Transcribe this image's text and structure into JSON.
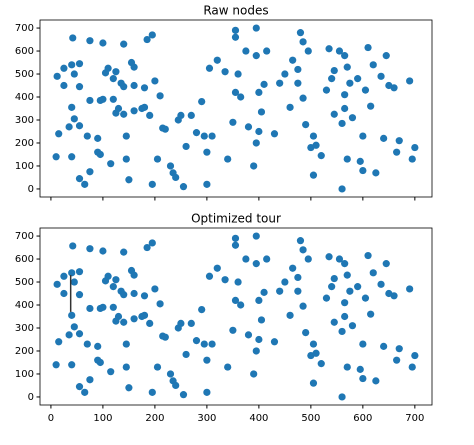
{
  "chart_data": [
    {
      "type": "scatter",
      "title": "Raw nodes",
      "color": "#1f77b4",
      "x": [
        42,
        75,
        100,
        140,
        185,
        195,
        12,
        25,
        40,
        55,
        45,
        25,
        55,
        75,
        95,
        105,
        110,
        120,
        125,
        135,
        140,
        155,
        160,
        180,
        200,
        210,
        15,
        10,
        40,
        45,
        35,
        55,
        40,
        55,
        65,
        75,
        90,
        95,
        115,
        125,
        130,
        120,
        140,
        145,
        145,
        150,
        160,
        180,
        190,
        195,
        205,
        215,
        220,
        230,
        235,
        240,
        245,
        255,
        250,
        260,
        270,
        280,
        290,
        295,
        300,
        300,
        305,
        310,
        320,
        335,
        340,
        350,
        355,
        355,
        355,
        360,
        365,
        375,
        380,
        390,
        395,
        395,
        395,
        400,
        400,
        410,
        405,
        415,
        430,
        440,
        450,
        460,
        465,
        475,
        475,
        480,
        485,
        485,
        490,
        495,
        500,
        505,
        505,
        510,
        520,
        530,
        535,
        540,
        545,
        545,
        555,
        560,
        560,
        565,
        565,
        565,
        570,
        575,
        570,
        580,
        590,
        595,
        600,
        600,
        605,
        610,
        615,
        620,
        625,
        635,
        640,
        645,
        650,
        660,
        665,
        670,
        690,
        700,
        695,
        160,
        175,
        100,
        90,
        70
      ],
      "y": [
        657,
        645,
        635,
        630,
        650,
        670,
        490,
        525,
        540,
        545,
        500,
        450,
        445,
        385,
        385,
        505,
        525,
        480,
        510,
        460,
        445,
        550,
        450,
        440,
        470,
        405,
        240,
        140,
        355,
        305,
        270,
        275,
        140,
        45,
        20,
        75,
        160,
        150,
        110,
        330,
        350,
        390,
        325,
        230,
        130,
        40,
        340,
        355,
        320,
        20,
        130,
        265,
        260,
        100,
        70,
        50,
        300,
        10,
        320,
        185,
        320,
        245,
        380,
        230,
        160,
        20,
        525,
        230,
        560,
        510,
        130,
        290,
        660,
        690,
        420,
        500,
        400,
        600,
        270,
        100,
        200,
        700,
        580,
        250,
        420,
        455,
        335,
        600,
        240,
        460,
        500,
        355,
        560,
        520,
        460,
        680,
        395,
        640,
        280,
        600,
        180,
        230,
        60,
        190,
        145,
        430,
        610,
        480,
        515,
        325,
        600,
        0,
        285,
        350,
        410,
        580,
        530,
        460,
        130,
        310,
        480,
        120,
        230,
        80,
        430,
        615,
        360,
        540,
        70,
        490,
        220,
        580,
        450,
        440,
        160,
        210,
        470,
        180,
        130,
        530,
        350,
        390,
        220,
        230
      ],
      "xlim": [
        -21,
        733
      ],
      "ylim": [
        -35,
        735
      ],
      "xticks": [
        0,
        100,
        200,
        300,
        400,
        500,
        600,
        700
      ],
      "yticks": [
        0,
        100,
        200,
        300,
        400,
        500,
        600,
        700
      ]
    },
    {
      "type": "scatter",
      "title": "Optimized tour",
      "color": "#1f77b4",
      "x": [
        42,
        75,
        100,
        140,
        185,
        195,
        12,
        25,
        40,
        55,
        45,
        25,
        55,
        75,
        95,
        105,
        110,
        120,
        125,
        135,
        140,
        155,
        160,
        180,
        200,
        210,
        15,
        10,
        40,
        45,
        35,
        55,
        40,
        55,
        65,
        75,
        90,
        95,
        115,
        125,
        130,
        120,
        140,
        145,
        145,
        150,
        160,
        180,
        190,
        195,
        205,
        215,
        220,
        230,
        235,
        240,
        245,
        255,
        250,
        260,
        270,
        280,
        290,
        295,
        300,
        300,
        305,
        310,
        320,
        335,
        340,
        350,
        355,
        355,
        355,
        360,
        365,
        375,
        380,
        390,
        395,
        395,
        395,
        400,
        400,
        410,
        405,
        415,
        430,
        440,
        450,
        460,
        465,
        475,
        475,
        480,
        485,
        485,
        490,
        495,
        500,
        505,
        505,
        510,
        520,
        530,
        535,
        540,
        545,
        545,
        555,
        560,
        560,
        565,
        565,
        565,
        570,
        575,
        570,
        580,
        590,
        595,
        600,
        600,
        605,
        610,
        615,
        620,
        625,
        635,
        640,
        645,
        650,
        660,
        665,
        670,
        690,
        700,
        695,
        160,
        175,
        100,
        90,
        70
      ],
      "y": [
        657,
        645,
        635,
        630,
        650,
        670,
        490,
        525,
        540,
        545,
        500,
        450,
        445,
        385,
        385,
        505,
        525,
        480,
        510,
        460,
        445,
        550,
        450,
        440,
        470,
        405,
        240,
        140,
        355,
        305,
        270,
        275,
        140,
        45,
        20,
        75,
        160,
        150,
        110,
        330,
        350,
        390,
        325,
        230,
        130,
        40,
        340,
        355,
        320,
        20,
        130,
        265,
        260,
        100,
        70,
        50,
        300,
        10,
        320,
        185,
        320,
        245,
        380,
        230,
        160,
        20,
        525,
        230,
        560,
        510,
        130,
        290,
        660,
        690,
        420,
        500,
        400,
        600,
        270,
        100,
        200,
        700,
        580,
        250,
        420,
        455,
        335,
        600,
        240,
        460,
        500,
        355,
        560,
        520,
        460,
        680,
        395,
        640,
        280,
        600,
        180,
        230,
        60,
        190,
        145,
        430,
        610,
        480,
        515,
        325,
        600,
        0,
        285,
        350,
        410,
        580,
        530,
        460,
        130,
        310,
        480,
        120,
        230,
        80,
        430,
        615,
        360,
        540,
        70,
        490,
        220,
        580,
        450,
        440,
        160,
        210,
        470,
        180,
        130,
        530,
        350,
        390,
        220,
        230
      ],
      "tour": {
        "color": "#333333",
        "x": [
          38,
          38
        ],
        "y": [
          530,
          370
        ]
      },
      "xlim": [
        -21,
        733
      ],
      "ylim": [
        -35,
        735
      ],
      "xticks": [
        0,
        100,
        200,
        300,
        400,
        500,
        600,
        700
      ],
      "yticks": [
        0,
        100,
        200,
        300,
        400,
        500,
        600,
        700
      ]
    }
  ]
}
